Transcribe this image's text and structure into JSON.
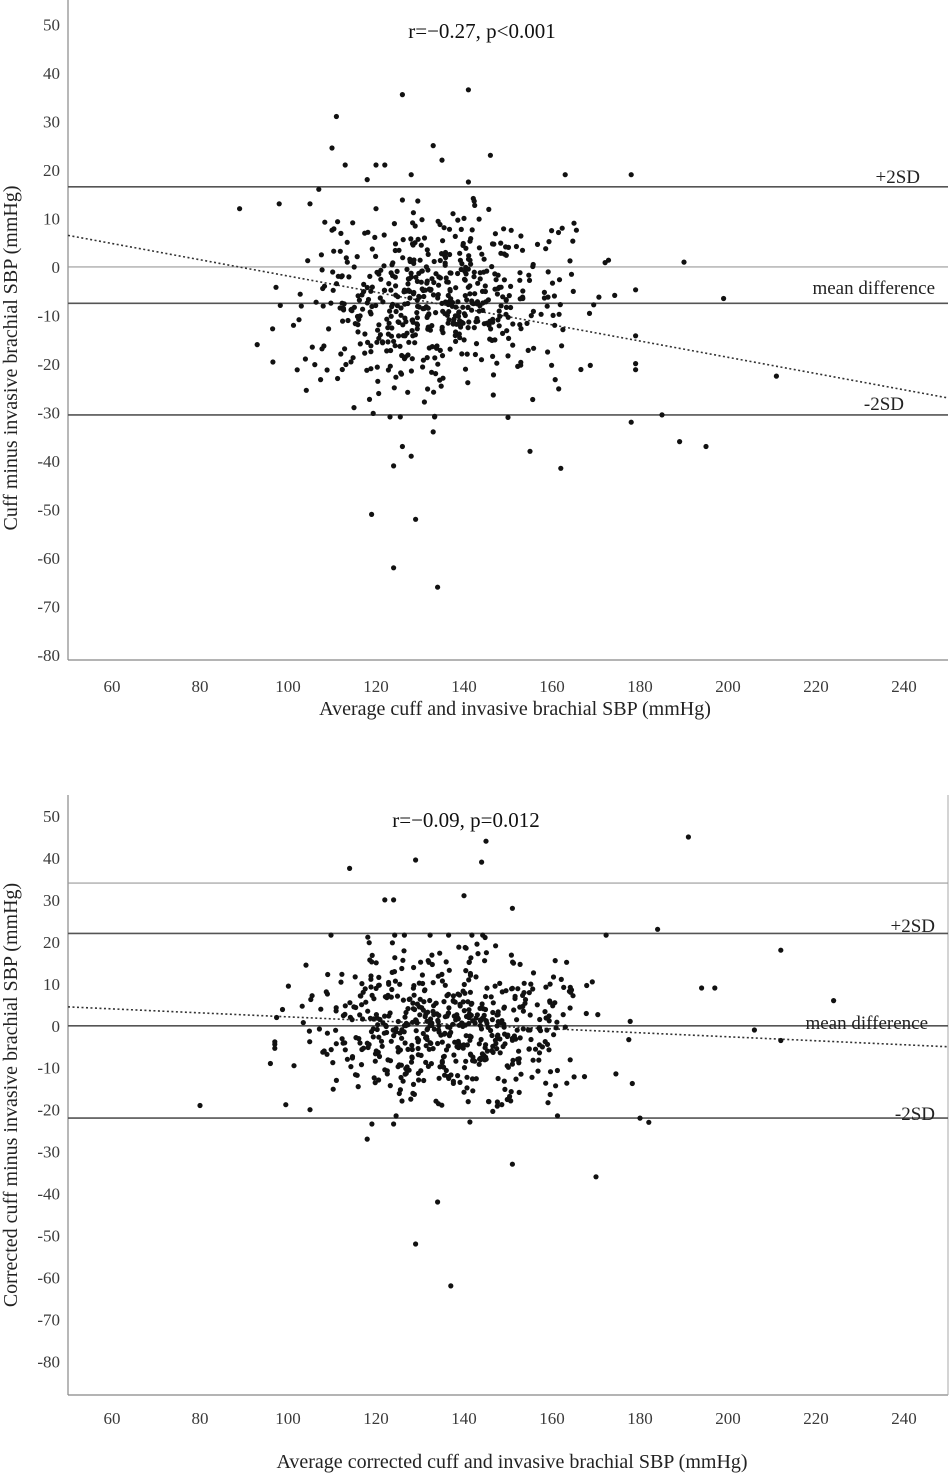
{
  "chart_data": [
    {
      "type": "scatter",
      "annotation": "r=−0.27, p<0.001",
      "xlabel": "Average cuff and invasive brachial SBP (mmHg)",
      "ylabel": "Cuff minus invasive brachial SBP (mmHg)",
      "xlim": [
        50,
        250
      ],
      "ylim": [
        -81,
        55
      ],
      "xticks": [
        60,
        80,
        100,
        120,
        140,
        160,
        180,
        200,
        220,
        240
      ],
      "yticks": [
        50,
        40,
        30,
        20,
        10,
        0,
        -10,
        -20,
        -30,
        -40,
        -50,
        -60,
        -70,
        -80
      ],
      "reference_lines": [
        {
          "name": "plus-2sd",
          "label": "+2SD",
          "y": 16.5
        },
        {
          "name": "zero",
          "label": "",
          "y": 0
        },
        {
          "name": "mean-difference",
          "label": "mean difference",
          "y": -7.5
        },
        {
          "name": "minus-2sd",
          "label": "-2SD",
          "y": -30.5
        }
      ],
      "regression": {
        "x1": 50,
        "y1": 6.5,
        "x2": 250,
        "y2": -27
      },
      "points_notable": [
        [
          126,
          35.5
        ],
        [
          141,
          36.5
        ],
        [
          111,
          31
        ],
        [
          110,
          24.5
        ],
        [
          113,
          21
        ],
        [
          120,
          21
        ],
        [
          122,
          21
        ],
        [
          118,
          18
        ],
        [
          128,
          19
        ],
        [
          133,
          25
        ],
        [
          135,
          22
        ],
        [
          146,
          23
        ],
        [
          163,
          19
        ],
        [
          178,
          19
        ],
        [
          141,
          17.5
        ],
        [
          107,
          16
        ],
        [
          89,
          12
        ],
        [
          105,
          13
        ],
        [
          98,
          13
        ],
        [
          120,
          12
        ],
        [
          140,
          10
        ],
        [
          165,
          9
        ],
        [
          190,
          1
        ],
        [
          199,
          -6.5
        ],
        [
          211,
          -22.5
        ],
        [
          195,
          -37
        ],
        [
          189,
          -36
        ],
        [
          185,
          -30.5
        ],
        [
          178,
          -32
        ],
        [
          162,
          -41.5
        ],
        [
          155,
          -38
        ],
        [
          150,
          -31
        ],
        [
          133,
          -34
        ],
        [
          126,
          -37
        ],
        [
          128,
          -39
        ],
        [
          124,
          -41
        ],
        [
          119,
          -51
        ],
        [
          129,
          -52
        ],
        [
          124,
          -62
        ],
        [
          134,
          -66
        ],
        [
          93,
          -16
        ],
        [
          115,
          -29
        ]
      ],
      "cloud": {
        "count": 560,
        "x_mean": 134,
        "x_sd": 15,
        "y_mean": -7.5,
        "y_sd": 9,
        "seed": 7
      }
    },
    {
      "type": "scatter",
      "annotation": "r=−0.09, p=0.012",
      "xlabel": "Average corrected cuff and invasive brachial SBP (mmHg)",
      "ylabel": "Corrected cuff minus invasive brachial SBP (mmHg)",
      "xlim": [
        50,
        250
      ],
      "ylim": [
        -88,
        55
      ],
      "xticks": [
        60,
        80,
        100,
        120,
        140,
        160,
        180,
        200,
        220,
        240
      ],
      "yticks": [
        50,
        40,
        30,
        20,
        10,
        0,
        -10,
        -20,
        -30,
        -40,
        -50,
        -60,
        -70,
        -80
      ],
      "reference_lines": [
        {
          "name": "top-frame",
          "label": "",
          "y": 34
        },
        {
          "name": "plus-2sd",
          "label": "+2SD",
          "y": 22
        },
        {
          "name": "mean-difference",
          "label": "mean difference",
          "y": 0
        },
        {
          "name": "minus-2sd",
          "label": "-2SD",
          "y": -22
        }
      ],
      "regression": {
        "x1": 50,
        "y1": 4.5,
        "x2": 250,
        "y2": -5
      },
      "points_notable": [
        [
          191,
          45
        ],
        [
          145,
          44
        ],
        [
          144,
          39
        ],
        [
          129,
          39.5
        ],
        [
          114,
          37.5
        ],
        [
          140,
          31
        ],
        [
          122,
          30
        ],
        [
          124,
          30
        ],
        [
          151,
          28
        ],
        [
          184,
          23
        ],
        [
          212,
          18
        ],
        [
          224,
          6
        ],
        [
          206,
          -1
        ],
        [
          212,
          -3.5
        ],
        [
          194,
          9
        ],
        [
          197,
          9
        ],
        [
          80,
          -19
        ],
        [
          118,
          -27
        ],
        [
          151,
          -33
        ],
        [
          170,
          -36
        ],
        [
          134,
          -42
        ],
        [
          129,
          -52
        ],
        [
          137,
          -62
        ],
        [
          180,
          -22
        ],
        [
          182,
          -23
        ],
        [
          105,
          -20
        ],
        [
          96,
          -9
        ]
      ],
      "cloud": {
        "count": 600,
        "x_mean": 137,
        "x_sd": 16,
        "y_mean": 0,
        "y_sd": 9,
        "seed": 13
      }
    }
  ]
}
